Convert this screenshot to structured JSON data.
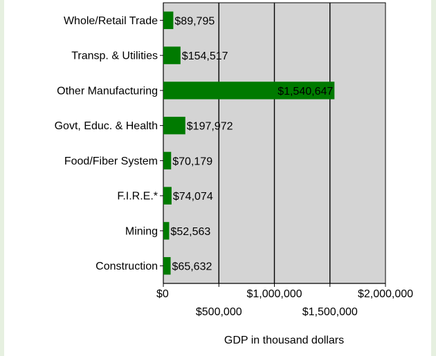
{
  "chart_data": {
    "type": "bar",
    "orientation": "horizontal",
    "categories": [
      "Whole/Retail Trade",
      "Transp. & Utilities",
      "Other Manufacturing",
      "Govt, Educ. & Health",
      "Food/Fiber System",
      "F.I.R.E.*",
      "Mining",
      "Construction"
    ],
    "values": [
      89795,
      154517,
      1540647,
      197972,
      70179,
      74074,
      52563,
      65632
    ],
    "data_labels": [
      "$89,795",
      "$154,517",
      "$1,540,647",
      "$197,972",
      "$70,179",
      "$74,074",
      "$52,563",
      "$65,632"
    ],
    "xlim": [
      0,
      2000000
    ],
    "x_ticks": [
      0,
      500000,
      1000000,
      1500000,
      2000000
    ],
    "x_tick_labels": [
      "$0",
      "$500,000",
      "$1,000,000",
      "$1,500,000",
      "$2,000,000"
    ],
    "xlabel": "GDP in thousand dollars",
    "ylabel": "",
    "title": "",
    "grid": "vertical lines",
    "legend": "none",
    "colors": {
      "bar": "#007a00",
      "plot_background": "#d4d4d4",
      "gridline": "#000000"
    }
  }
}
